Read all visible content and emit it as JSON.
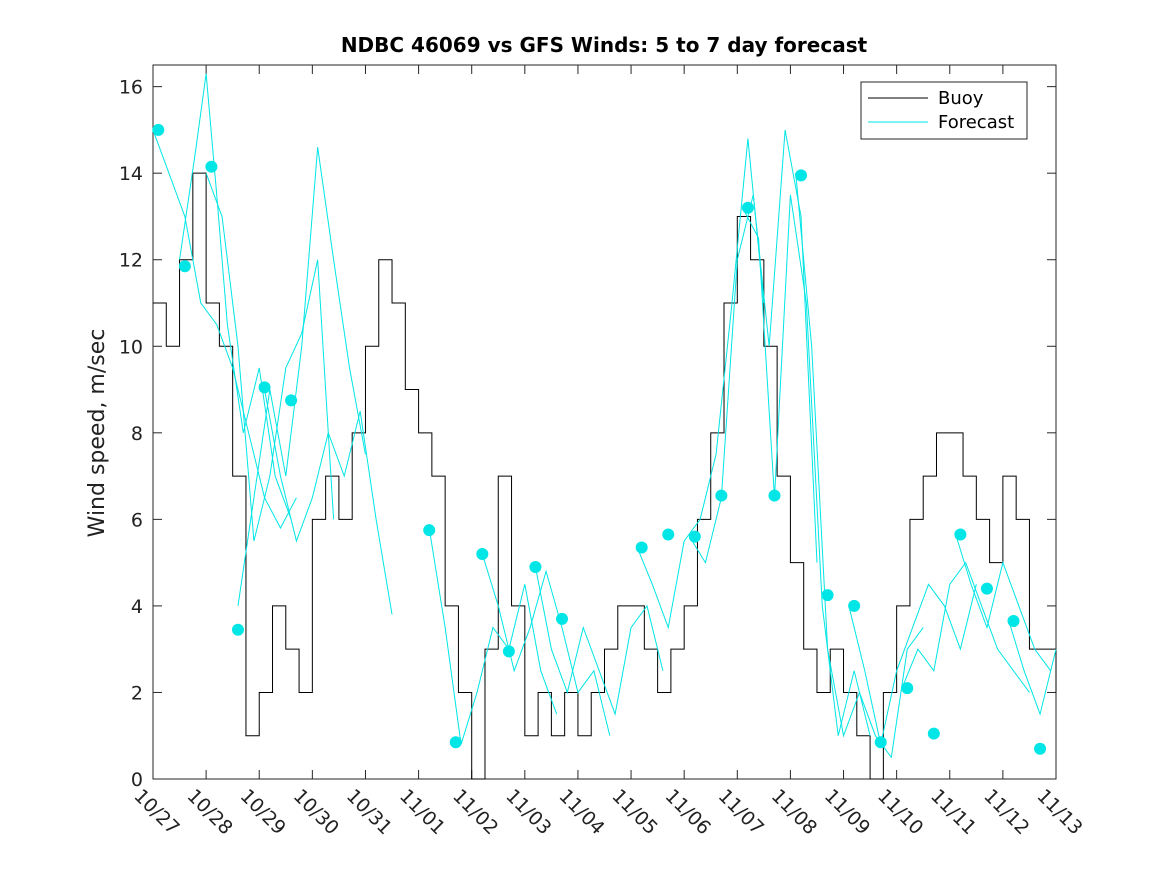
{
  "chart_data": {
    "type": "line",
    "title": "NDBC 46069 vs GFS Winds: 5 to 7 day forecast",
    "xlabel": "",
    "ylabel": "Wind speed, m/sec",
    "xlim": [
      0,
      17
    ],
    "ylim": [
      0,
      16.5
    ],
    "x_ticks": [
      {
        "x": 0,
        "label": "10/27"
      },
      {
        "x": 1,
        "label": "10/28"
      },
      {
        "x": 2,
        "label": "10/29"
      },
      {
        "x": 3,
        "label": "10/30"
      },
      {
        "x": 4,
        "label": "10/31"
      },
      {
        "x": 5,
        "label": "11/01"
      },
      {
        "x": 6,
        "label": "11/02"
      },
      {
        "x": 7,
        "label": "11/03"
      },
      {
        "x": 8,
        "label": "11/04"
      },
      {
        "x": 9,
        "label": "11/05"
      },
      {
        "x": 10,
        "label": "11/06"
      },
      {
        "x": 11,
        "label": "11/07"
      },
      {
        "x": 12,
        "label": "11/08"
      },
      {
        "x": 13,
        "label": "11/09"
      },
      {
        "x": 14,
        "label": "11/10"
      },
      {
        "x": 15,
        "label": "11/11"
      },
      {
        "x": 16,
        "label": "11/12"
      },
      {
        "x": 17,
        "label": "11/13"
      }
    ],
    "y_ticks": [
      0,
      2,
      4,
      6,
      8,
      10,
      12,
      14,
      16
    ],
    "legend": {
      "position": "top-right",
      "entries": [
        {
          "label": "Buoy",
          "color": "#000000"
        },
        {
          "label": "Forecast",
          "color": "#00e5e5"
        }
      ]
    },
    "colors": {
      "buoy": "#000000",
      "forecast": "#00e5e5",
      "marker": "#00e5e5"
    },
    "series": [
      {
        "name": "Buoy",
        "x": [
          0,
          0.25,
          0.5,
          0.75,
          1.0,
          1.25,
          1.5,
          1.75,
          2.0,
          2.25,
          2.5,
          2.75,
          3.0,
          3.25,
          3.5,
          3.75,
          4.0,
          4.25,
          4.5,
          4.75,
          5.0,
          5.25,
          5.5,
          5.75,
          6.0,
          6.25,
          6.5,
          6.75,
          7.0,
          7.25,
          7.5,
          7.75,
          8.0,
          8.25,
          8.5,
          8.75,
          9.0,
          9.25,
          9.5,
          9.75,
          10.0,
          10.25,
          10.5,
          10.75,
          11.0,
          11.25,
          11.5,
          11.75,
          12.0,
          12.25,
          12.5,
          12.75,
          13.0,
          13.25,
          13.5,
          13.75,
          14.0,
          14.25,
          14.5,
          14.75,
          15.0,
          15.25,
          15.5,
          15.75,
          16.0,
          16.25,
          16.5,
          16.75,
          17.0
        ],
        "values": [
          11,
          10,
          12,
          14,
          11,
          10,
          7,
          1,
          2,
          4,
          3,
          2,
          6,
          7,
          6,
          8,
          10,
          12,
          11,
          9,
          8,
          7,
          4,
          2,
          0,
          3,
          7,
          4,
          1,
          2,
          1,
          2,
          1,
          2,
          3,
          4,
          4,
          3,
          2,
          3,
          4,
          6,
          8,
          11,
          13,
          12,
          10,
          7,
          5,
          3,
          2,
          3,
          2,
          1,
          0,
          2,
          4,
          6,
          7,
          8,
          8,
          7,
          6,
          5,
          7,
          6,
          3,
          3,
          2
        ]
      },
      {
        "name": "Forecast",
        "segments": [
          {
            "x": [
              0.0,
              0.3,
              0.6,
              0.9,
              1.2,
              1.5,
              1.8,
              2.1,
              2.4,
              2.7
            ],
            "values": [
              15.0,
              14.0,
              13.0,
              11.0,
              10.5,
              9.5,
              8.0,
              6.5,
              5.8,
              6.5
            ]
          },
          {
            "x": [
              0.5,
              0.8,
              1.0,
              1.2,
              1.4,
              1.7,
              2.0,
              2.3,
              2.6
            ],
            "values": [
              12.0,
              14.5,
              16.3,
              13.5,
              10.5,
              8.0,
              9.5,
              7.0,
              6.0
            ]
          },
          {
            "x": [
              1.0,
              1.3,
              1.6,
              1.9,
              2.2,
              2.5,
              2.8,
              3.1,
              3.4
            ],
            "values": [
              14.0,
              13.0,
              10.0,
              5.5,
              7.0,
              9.5,
              10.3,
              12.0,
              6.0
            ]
          },
          {
            "x": [
              1.6,
              1.9,
              2.2,
              2.5,
              2.8,
              3.1,
              3.4,
              3.7,
              4.0
            ],
            "values": [
              4.0,
              6.5,
              9.0,
              7.0,
              10.0,
              14.6,
              12.0,
              9.5,
              7.5
            ]
          },
          {
            "x": [
              2.1,
              2.4,
              2.7,
              3.0,
              3.3,
              3.6,
              3.9,
              4.2,
              4.5
            ],
            "values": [
              9.0,
              7.0,
              5.5,
              6.5,
              8.0,
              7.0,
              8.5,
              6.0,
              3.8
            ]
          },
          {
            "x": [
              5.2,
              5.5,
              5.8,
              6.1,
              6.4,
              6.7,
              7.0,
              7.3,
              7.6
            ],
            "values": [
              5.8,
              3.5,
              0.8,
              2.0,
              3.5,
              3.0,
              4.5,
              2.5,
              1.5
            ]
          },
          {
            "x": [
              6.2,
              6.5,
              6.8,
              7.1,
              7.4,
              7.7,
              8.0,
              8.3,
              8.6
            ],
            "values": [
              5.2,
              4.0,
              2.5,
              3.5,
              4.8,
              3.5,
              2.0,
              2.5,
              1.0
            ]
          },
          {
            "x": [
              7.2,
              7.5,
              7.8,
              8.1,
              8.4,
              8.7,
              9.0,
              9.3,
              9.6
            ],
            "values": [
              4.9,
              3.0,
              2.0,
              3.5,
              2.5,
              1.5,
              3.5,
              4.0,
              2.5
            ]
          },
          {
            "x": [
              9.1,
              9.4,
              9.7,
              10.0,
              10.3,
              10.6,
              10.9,
              11.2,
              11.5
            ],
            "values": [
              5.4,
              4.5,
              3.5,
              5.5,
              6.0,
              7.5,
              11.0,
              14.8,
              11.0
            ]
          },
          {
            "x": [
              10.1,
              10.4,
              10.7,
              11.0,
              11.3,
              11.6,
              11.9,
              12.2,
              12.5
            ],
            "values": [
              5.6,
              5.0,
              6.5,
              12.0,
              13.5,
              10.0,
              15.0,
              13.0,
              5.0
            ]
          },
          {
            "x": [
              11.1,
              11.4,
              11.7,
              12.0,
              12.3,
              12.6,
              12.9,
              13.2,
              13.5
            ],
            "values": [
              13.2,
              12.5,
              6.5,
              13.5,
              11.0,
              4.0,
              1.0,
              2.5,
              1.0
            ]
          },
          {
            "x": [
              12.1,
              12.4,
              12.7,
              13.0,
              13.3,
              13.6,
              13.9,
              14.2,
              14.5
            ],
            "values": [
              14.0,
              10.0,
              3.0,
              1.0,
              2.0,
              1.0,
              0.5,
              3.0,
              3.5
            ]
          },
          {
            "x": [
              13.1,
              13.4,
              13.7,
              14.0,
              14.3,
              14.6,
              14.9,
              15.2,
              15.5
            ],
            "values": [
              4.0,
              2.5,
              0.8,
              2.5,
              3.5,
              4.5,
              4.0,
              3.0,
              4.5
            ]
          },
          {
            "x": [
              14.1,
              14.4,
              14.7,
              15.0,
              15.3,
              15.6,
              15.9,
              16.2,
              16.5
            ],
            "values": [
              2.1,
              3.0,
              2.5,
              4.5,
              5.0,
              4.0,
              3.0,
              2.5,
              2.0
            ]
          },
          {
            "x": [
              15.1,
              15.4,
              15.7,
              16.0,
              16.3,
              16.6,
              16.9
            ],
            "values": [
              5.7,
              4.5,
              3.5,
              5.0,
              4.0,
              3.0,
              2.5
            ]
          },
          {
            "x": [
              16.1,
              16.4,
              16.7,
              17.0
            ],
            "values": [
              3.7,
              2.5,
              1.5,
              3.0
            ]
          }
        ]
      },
      {
        "name": "Forecast markers",
        "points": [
          {
            "x": 0.1,
            "y": 15.0
          },
          {
            "x": 0.6,
            "y": 11.85
          },
          {
            "x": 1.1,
            "y": 14.15
          },
          {
            "x": 1.6,
            "y": 3.45
          },
          {
            "x": 2.1,
            "y": 9.05
          },
          {
            "x": 2.6,
            "y": 8.75
          },
          {
            "x": 5.2,
            "y": 5.75
          },
          {
            "x": 5.7,
            "y": 0.85
          },
          {
            "x": 6.2,
            "y": 5.2
          },
          {
            "x": 6.7,
            "y": 2.95
          },
          {
            "x": 7.2,
            "y": 4.9
          },
          {
            "x": 7.7,
            "y": 3.7
          },
          {
            "x": 9.2,
            "y": 5.35
          },
          {
            "x": 9.7,
            "y": 5.65
          },
          {
            "x": 10.2,
            "y": 5.6
          },
          {
            "x": 10.7,
            "y": 6.55
          },
          {
            "x": 11.2,
            "y": 13.2
          },
          {
            "x": 11.7,
            "y": 6.55
          },
          {
            "x": 12.2,
            "y": 13.95
          },
          {
            "x": 12.7,
            "y": 4.25
          },
          {
            "x": 13.2,
            "y": 4.0
          },
          {
            "x": 13.7,
            "y": 0.85
          },
          {
            "x": 14.2,
            "y": 2.1
          },
          {
            "x": 14.7,
            "y": 1.05
          },
          {
            "x": 15.2,
            "y": 5.65
          },
          {
            "x": 15.7,
            "y": 4.4
          },
          {
            "x": 16.2,
            "y": 3.65
          },
          {
            "x": 16.7,
            "y": 0.7
          }
        ]
      }
    ]
  }
}
